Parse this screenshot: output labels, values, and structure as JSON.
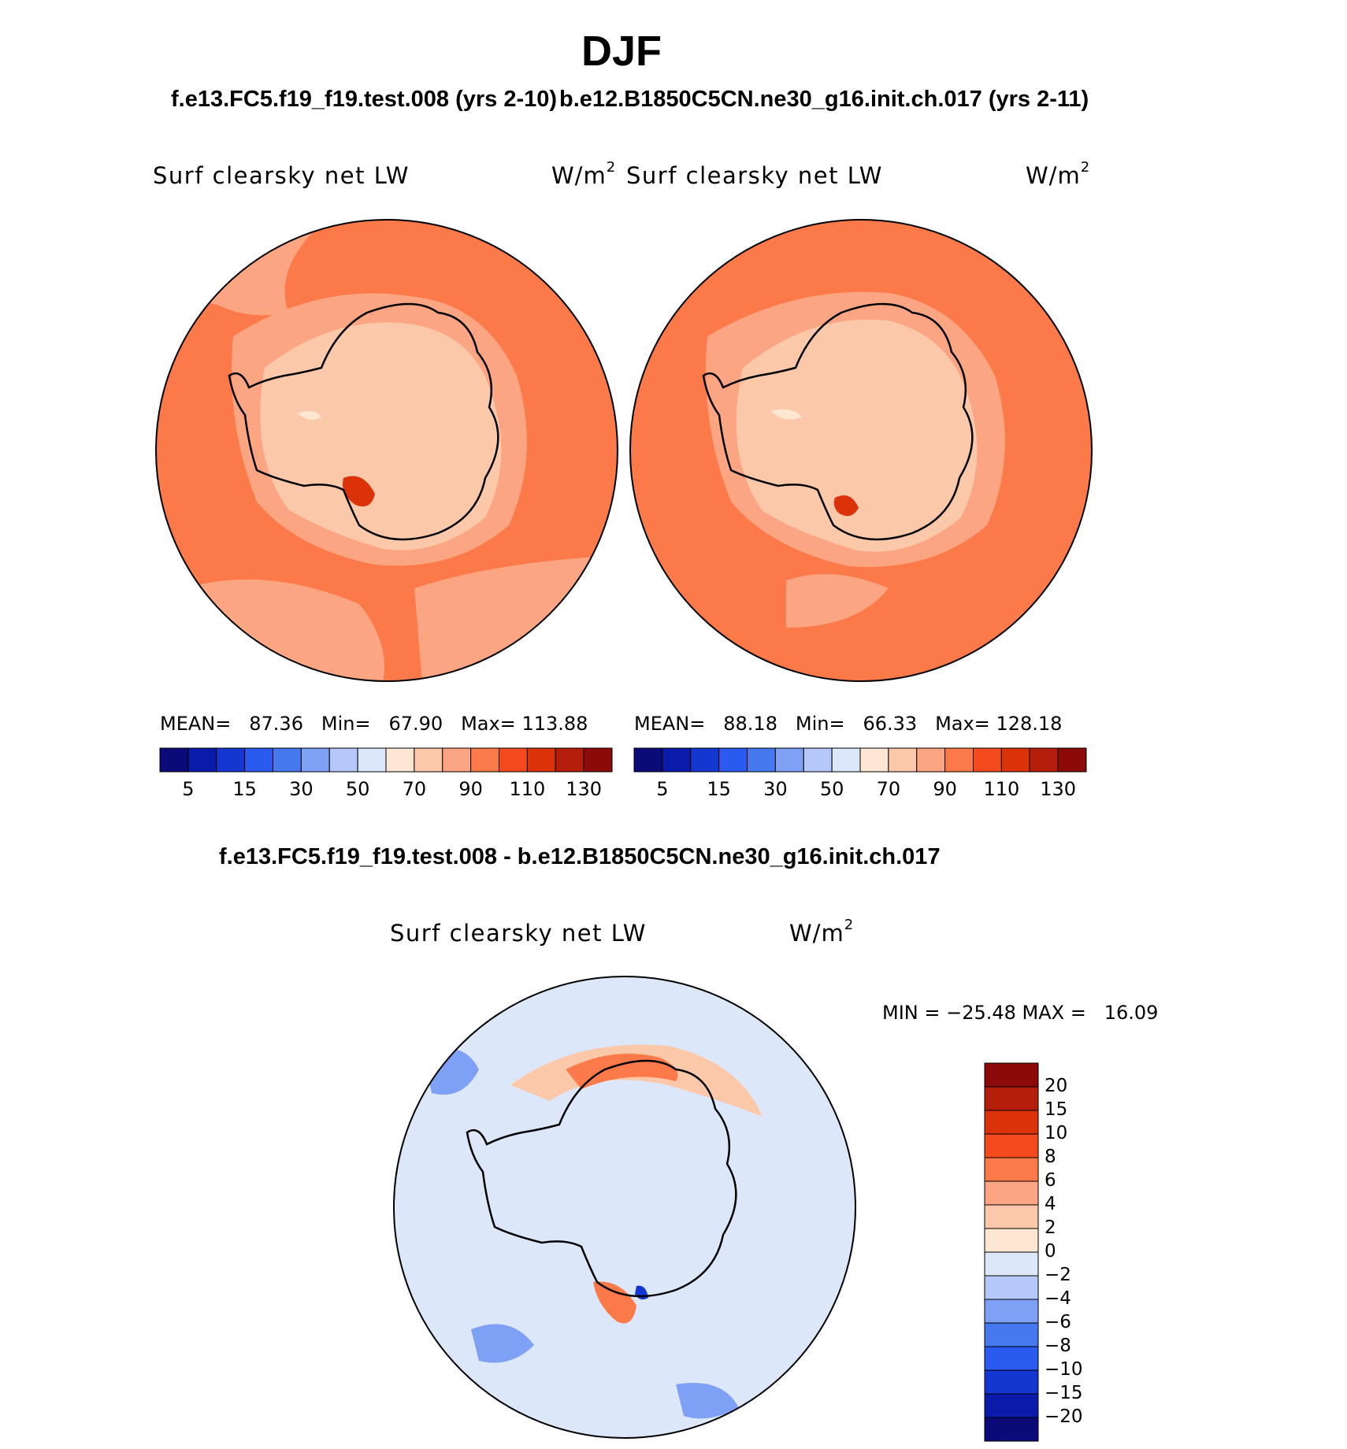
{
  "page": {
    "season": "DJF",
    "case_test": "f.e13.FC5.f19_f19.test.008 (yrs 2-10)",
    "case_control": "b.e12.B1850C5CN.ne30_g16.init.ch.017 (yrs 2-11)",
    "diff_title": "f.e13.FC5.f19_f19.test.008 - b.e12.B1850C5CN.ne30_g16.init.ch.017"
  },
  "panels": {
    "test": {
      "variable": "Surf clearsky net LW",
      "unit": "W/m",
      "unit_sup": "2",
      "mean_label": "MEAN=",
      "mean": "87.36",
      "min_label": "Min=",
      "min": "67.90",
      "max_label": "Max=",
      "max": "113.88"
    },
    "control": {
      "variable": "Surf clearsky net LW",
      "unit": "W/m",
      "unit_sup": "2",
      "mean_label": "MEAN=",
      "mean": "88.18",
      "min_label": "Min=",
      "min": "66.33",
      "max_label": "Max=",
      "max": "128.18"
    },
    "diff": {
      "variable": "Surf clearsky net LW",
      "unit": "W/m",
      "unit_sup": "2",
      "minmax": "MIN = −25.48 MAX =   16.09"
    }
  },
  "colorbar_abs": {
    "colors": [
      "#0a0a78",
      "#0a1aaa",
      "#1437d2",
      "#2a5af0",
      "#4678f0",
      "#7ea0f5",
      "#b4c8fa",
      "#dce8fa",
      "#fde6d2",
      "#fcc8aa",
      "#fca582",
      "#fc7a4a",
      "#f54a1e",
      "#dc320a",
      "#b41e0a",
      "#8c0a0a"
    ],
    "tick_labels": [
      "5",
      "15",
      "30",
      "50",
      "70",
      "90",
      "110",
      "130"
    ]
  },
  "colorbar_diff": {
    "colors": [
      "#0a0a78",
      "#0a1aaa",
      "#1437d2",
      "#2a5af0",
      "#4678f0",
      "#7ea0f5",
      "#b4c8fa",
      "#dce8fa",
      "#fde6d2",
      "#fcc8aa",
      "#fca582",
      "#fc7a4a",
      "#f54a1e",
      "#dc320a",
      "#b41e0a",
      "#8c0a0a"
    ],
    "tick_labels": [
      "20",
      "15",
      "10",
      "8",
      "6",
      "4",
      "2",
      "0",
      "−2",
      "−4",
      "−6",
      "−8",
      "−10",
      "−15",
      "−20"
    ]
  },
  "colors": {
    "ocean_fill": "#fc7a4a",
    "ocean_light": "#fca582",
    "ice_light": "#fcc8aa",
    "ice_lightest": "#fde6d2",
    "max_red": "#dc320a",
    "diff_bg": "#dce8fa",
    "diff_neg": "#7ea0f5",
    "diff_pos": "#fcc8aa"
  }
}
